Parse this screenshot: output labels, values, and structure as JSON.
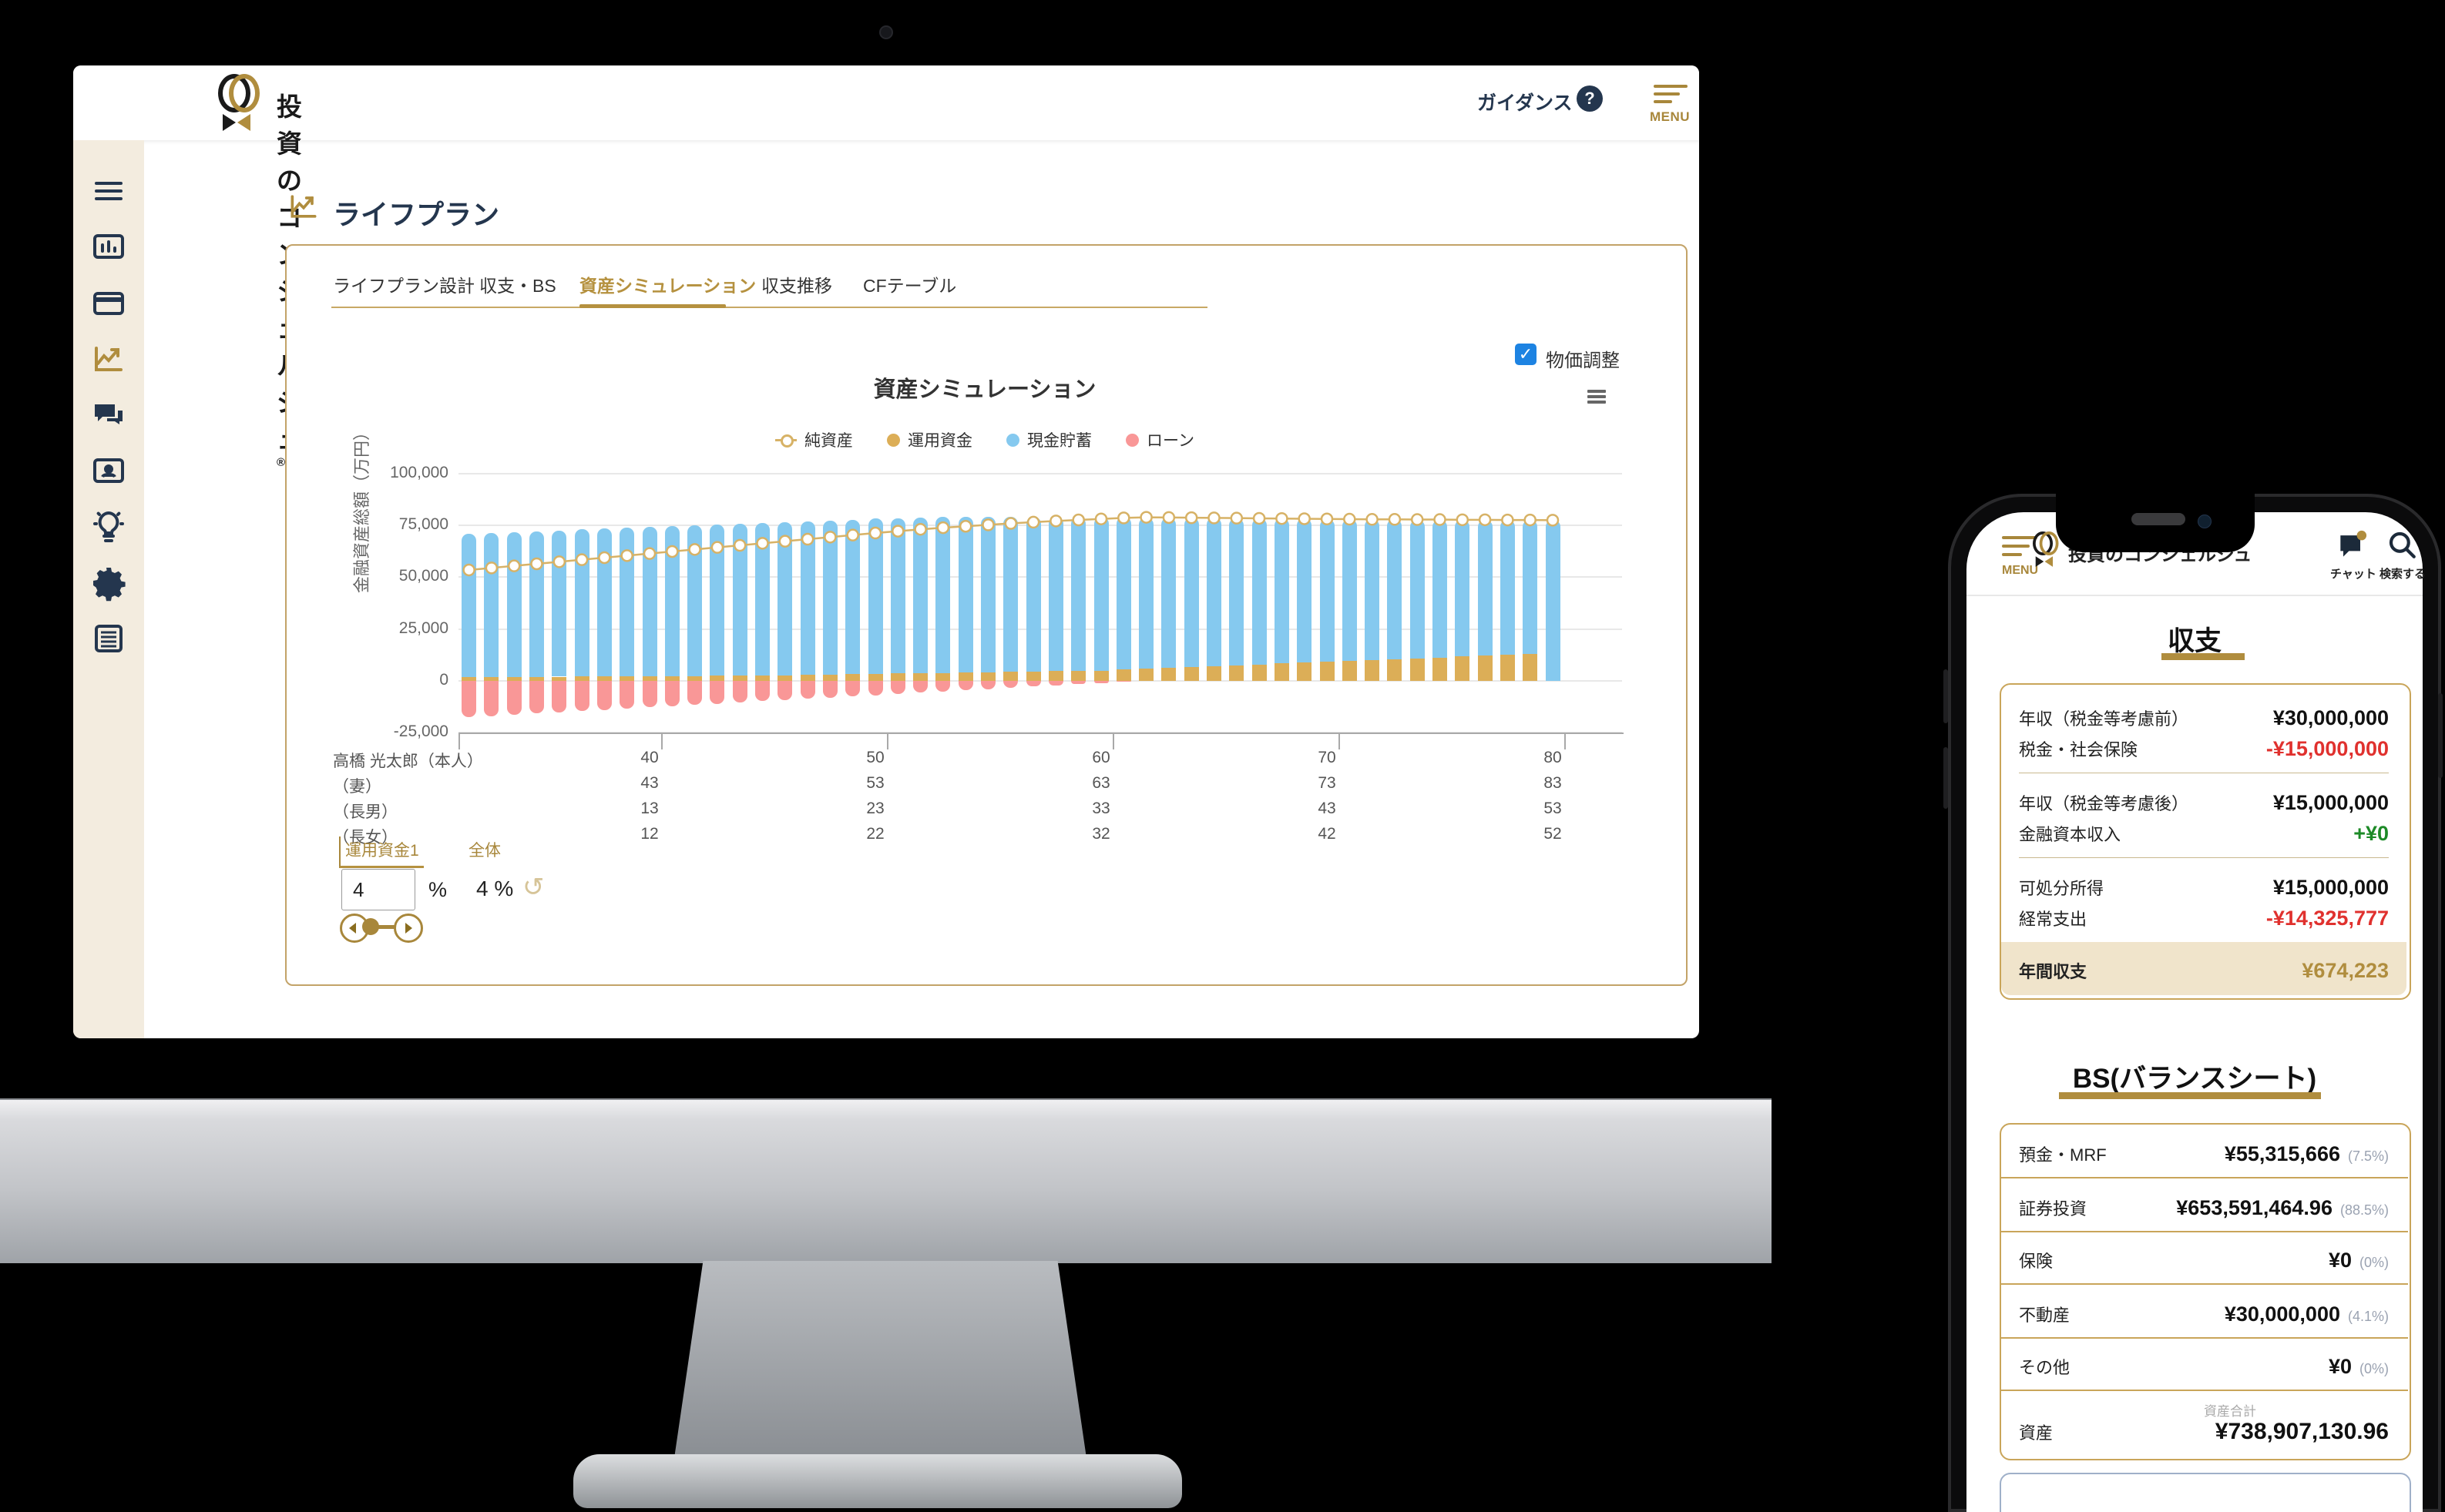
{
  "desktop": {
    "header": {
      "brand": "投資のコンシェルジュ",
      "brand_reg": "®",
      "guidance": "ガイダンス",
      "question": "?",
      "menu": "MENU"
    },
    "page_title": "ライフプラン",
    "tabs": [
      {
        "label": "ライフプラン設計"
      },
      {
        "label": "収支・BS"
      },
      {
        "label": "資産シミュレーション"
      },
      {
        "label": "収支推移"
      },
      {
        "label": "CFテーブル"
      }
    ],
    "price_adjust": {
      "label": "物価調整",
      "checked": "✓"
    },
    "controls": {
      "fund_tab": "運用資金1",
      "overall_tab": "全体",
      "rate_value": "4",
      "percent": "%",
      "overall_rate": "4 %",
      "undo": "↺"
    }
  },
  "chart_data": {
    "type": "bar",
    "subtype": "stacked-column-with-line",
    "title": "資産シミュレーション",
    "ylabel": "金融資産総額（万円）",
    "yticks": [
      100000,
      75000,
      50000,
      25000,
      0,
      -25000
    ],
    "ylim": [
      -25000,
      100000
    ],
    "xticks": [
      40,
      50,
      60,
      70,
      80
    ],
    "legend_position": "top",
    "ages": [
      32,
      33,
      34,
      35,
      36,
      37,
      38,
      39,
      40,
      41,
      42,
      43,
      44,
      45,
      46,
      47,
      48,
      49,
      50,
      51,
      52,
      53,
      54,
      55,
      56,
      57,
      58,
      59,
      60,
      61,
      62,
      63,
      64,
      65,
      66,
      67,
      68,
      69,
      70,
      71,
      72,
      73,
      74,
      75,
      76,
      77,
      78,
      79,
      80
    ],
    "series": [
      {
        "name": "純資産",
        "type": "line",
        "color": "#d7b266",
        "values": [
          53500,
          54490,
          55480,
          56470,
          57460,
          58450,
          59440,
          60430,
          61420,
          62410,
          63400,
          64390,
          65380,
          66370,
          67360,
          68350,
          69340,
          70330,
          71320,
          72210,
          73100,
          73890,
          74580,
          75270,
          75960,
          76550,
          77140,
          77630,
          78120,
          78610,
          78900,
          78800,
          78700,
          78600,
          78500,
          78400,
          78300,
          78200,
          78100,
          78000,
          77900,
          77900,
          77800,
          77800,
          77700,
          77700,
          77600,
          77600,
          77500
        ]
      },
      {
        "name": "運用資金",
        "type": "bar",
        "color": "#dcae57",
        "values": [
          1800,
          1860,
          1920,
          1980,
          2040,
          2100,
          2160,
          2220,
          2280,
          2340,
          2400,
          2460,
          2520,
          2580,
          2740,
          2900,
          3060,
          3220,
          3380,
          3540,
          3700,
          3860,
          4020,
          4180,
          4340,
          4500,
          4660,
          4820,
          5000,
          5420,
          5840,
          6260,
          6680,
          7100,
          7520,
          7940,
          8360,
          8780,
          9200,
          9620,
          10040,
          10460,
          10880,
          11300,
          11720,
          12140,
          12560,
          12980,
          0
        ]
      },
      {
        "name": "現金貯蓄",
        "type": "bar",
        "color": "#85c9ef",
        "values": [
          69200,
          69540,
          69880,
          70220,
          70560,
          70900,
          71240,
          71580,
          71920,
          72260,
          72600,
          72940,
          73280,
          73620,
          73860,
          74100,
          74340,
          74580,
          74820,
          74960,
          75100,
          75140,
          75080,
          75020,
          74960,
          74800,
          74640,
          74380,
          74100,
          73580,
          73060,
          72540,
          72020,
          71500,
          70980,
          70460,
          69940,
          69420,
          68900,
          68380,
          67860,
          67440,
          66920,
          66500,
          65980,
          65560,
          65040,
          64620,
          77500
        ]
      },
      {
        "name": "ローン",
        "type": "bar",
        "color": "#f99797",
        "values": [
          -17500,
          -16910,
          -16320,
          -15730,
          -15140,
          -14550,
          -13960,
          -13370,
          -12780,
          -12190,
          -11600,
          -11010,
          -10420,
          -9830,
          -9240,
          -8650,
          -8060,
          -7470,
          -6880,
          -6290,
          -5700,
          -5110,
          -4520,
          -3930,
          -3340,
          -2750,
          -2160,
          -1570,
          -980,
          -390,
          0,
          0,
          0,
          0,
          0,
          0,
          0,
          0,
          0,
          0,
          0,
          0,
          0,
          0,
          0,
          0,
          0,
          0,
          0
        ]
      }
    ]
  },
  "family_rows": [
    {
      "label": "高橋 光太郎（本人）",
      "values": [
        "40",
        "50",
        "60",
        "70",
        "80"
      ]
    },
    {
      "label": "（妻）",
      "values": [
        "43",
        "53",
        "63",
        "73",
        "83"
      ]
    },
    {
      "label": "（長男）",
      "values": [
        "13",
        "23",
        "33",
        "43",
        "53"
      ]
    },
    {
      "label": "（長女）",
      "values": [
        "12",
        "22",
        "32",
        "42",
        "52"
      ]
    }
  ],
  "phone": {
    "menu_label": "MENU",
    "brand": "投資のコンシェルジュ",
    "chat_label": "チャット",
    "search_label": "検索する",
    "income_section": {
      "title": "収支",
      "rows": [
        {
          "label": "年収（税金等考慮前）",
          "value": "¥30,000,000"
        },
        {
          "label": "税金・社会保険",
          "value": "-¥15,000,000"
        },
        {
          "label": "年収（税金等考慮後）",
          "value": "¥15,000,000"
        },
        {
          "label": "金融資本収入",
          "value": "+¥0"
        },
        {
          "label": "可処分所得",
          "value": "¥15,000,000"
        },
        {
          "label": "経常支出",
          "value": "-¥14,325,777"
        },
        {
          "label": "年間収支",
          "value": "¥674,223"
        }
      ]
    },
    "bs_section": {
      "title": "BS(バランスシート)",
      "rows": [
        {
          "label": "預金・MRF",
          "value": "¥55,315,666",
          "pct": "(7.5%)"
        },
        {
          "label": "証券投資",
          "value": "¥653,591,464.96",
          "pct": "(88.5%)"
        },
        {
          "label": "保険",
          "value": "¥0",
          "pct": "(0%)"
        },
        {
          "label": "不動産",
          "value": "¥30,000,000",
          "pct": "(4.1%)"
        },
        {
          "label": "その他",
          "value": "¥0",
          "pct": "(0%)"
        },
        {
          "label": "資産",
          "value": "¥738,907,130.96",
          "sub": "資産合計"
        }
      ]
    }
  }
}
